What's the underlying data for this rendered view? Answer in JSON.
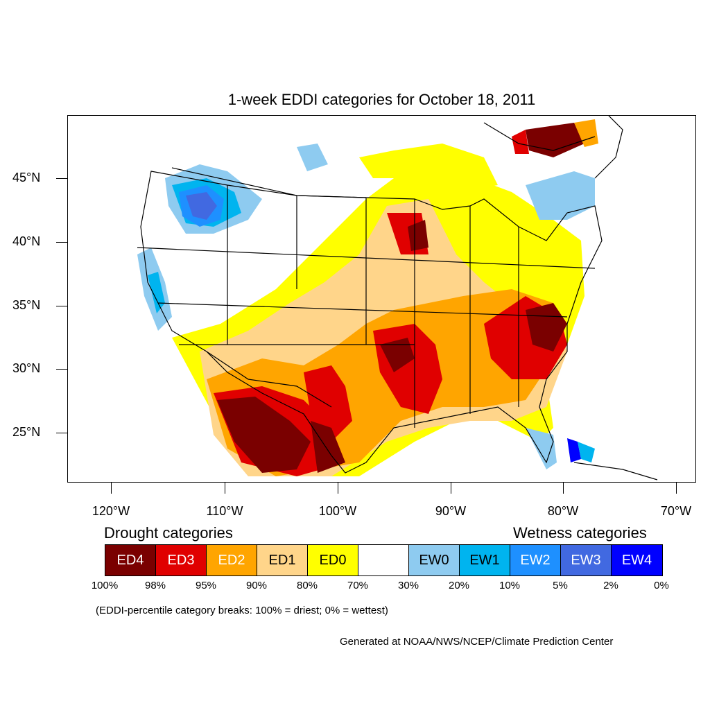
{
  "title": "1-week EDDI categories for October 18, 2011",
  "lat_labels": [
    "45°N",
    "40°N",
    "35°N",
    "30°N",
    "25°N"
  ],
  "lon_labels": [
    "120°W",
    "110°W",
    "100°W",
    "90°W",
    "80°W",
    "70°W"
  ],
  "legend": {
    "drought_heading": "Drought categories",
    "wetness_heading": "Wetness categories",
    "categories": [
      {
        "label": "ED4",
        "color": "#7a0000",
        "text_color": "#ffffff"
      },
      {
        "label": "ED3",
        "color": "#e00000",
        "text_color": "#ffffff"
      },
      {
        "label": "ED2",
        "color": "#ffa500",
        "text_color": "#ffffff"
      },
      {
        "label": "ED1",
        "color": "#ffd58a",
        "text_color": "#000000"
      },
      {
        "label": "ED0",
        "color": "#ffff00",
        "text_color": "#000000"
      },
      {
        "label": "",
        "color": "#ffffff",
        "text_color": "#000000"
      },
      {
        "label": "EW0",
        "color": "#8ecbf0",
        "text_color": "#000000"
      },
      {
        "label": "EW1",
        "color": "#00b4ef",
        "text_color": "#000000"
      },
      {
        "label": "EW2",
        "color": "#1e90ff",
        "text_color": "#ffffff"
      },
      {
        "label": "EW3",
        "color": "#4169e1",
        "text_color": "#ffffff"
      },
      {
        "label": "EW4",
        "color": "#0000ff",
        "text_color": "#ffffff"
      }
    ],
    "percentiles": [
      "100%",
      "98%",
      "95%",
      "90%",
      "80%",
      "70%",
      "30%",
      "20%",
      "10%",
      "5%",
      "2%",
      "0%"
    ]
  },
  "note": "(EDDI-percentile category breaks: 100% = driest; 0% = wettest)",
  "credit": "Generated at NOAA/NWS/NCEP/Climate Prediction Center"
}
